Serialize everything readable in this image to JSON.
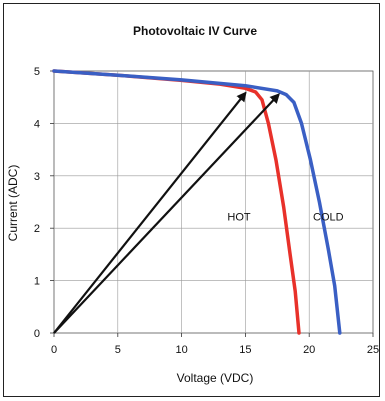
{
  "chart_data": {
    "type": "line",
    "title": "Photovoltaic IV Curve",
    "xlabel": "Voltage (VDC)",
    "ylabel": "Current (ADC)",
    "xlim": [
      0,
      25
    ],
    "ylim": [
      0,
      5
    ],
    "x_ticks": [
      "0",
      "5",
      "10",
      "15",
      "20",
      "25"
    ],
    "y_ticks": [
      "0",
      "1",
      "2",
      "3",
      "4",
      "5"
    ],
    "grid": true,
    "series": [
      {
        "name": "HOT",
        "color": "#e8312a",
        "points": [
          [
            0,
            5.0
          ],
          [
            5,
            4.92
          ],
          [
            10,
            4.82
          ],
          [
            13,
            4.75
          ],
          [
            15,
            4.67
          ],
          [
            15.8,
            4.6
          ],
          [
            16.3,
            4.45
          ],
          [
            16.8,
            4.0
          ],
          [
            17.4,
            3.3
          ],
          [
            18.0,
            2.4
          ],
          [
            18.5,
            1.5
          ],
          [
            18.9,
            0.8
          ],
          [
            19.2,
            0.0
          ]
        ]
      },
      {
        "name": "COLD",
        "color": "#3a5fc4",
        "points": [
          [
            0,
            5.0
          ],
          [
            5,
            4.92
          ],
          [
            10,
            4.83
          ],
          [
            15,
            4.72
          ],
          [
            17.5,
            4.62
          ],
          [
            18.2,
            4.55
          ],
          [
            18.8,
            4.4
          ],
          [
            19.4,
            4.0
          ],
          [
            20.1,
            3.3
          ],
          [
            20.8,
            2.5
          ],
          [
            21.5,
            1.6
          ],
          [
            22.0,
            0.9
          ],
          [
            22.4,
            0.0
          ]
        ]
      }
    ],
    "series_labels": [
      {
        "text": "HOT",
        "x": 14.5,
        "y": 2.15
      },
      {
        "text": "COLD",
        "x": 21.5,
        "y": 2.15
      }
    ],
    "arrows": [
      {
        "from": [
          0,
          0
        ],
        "to": [
          15,
          4.58
        ]
      },
      {
        "from": [
          0,
          0
        ],
        "to": [
          17.6,
          4.55
        ]
      }
    ]
  }
}
